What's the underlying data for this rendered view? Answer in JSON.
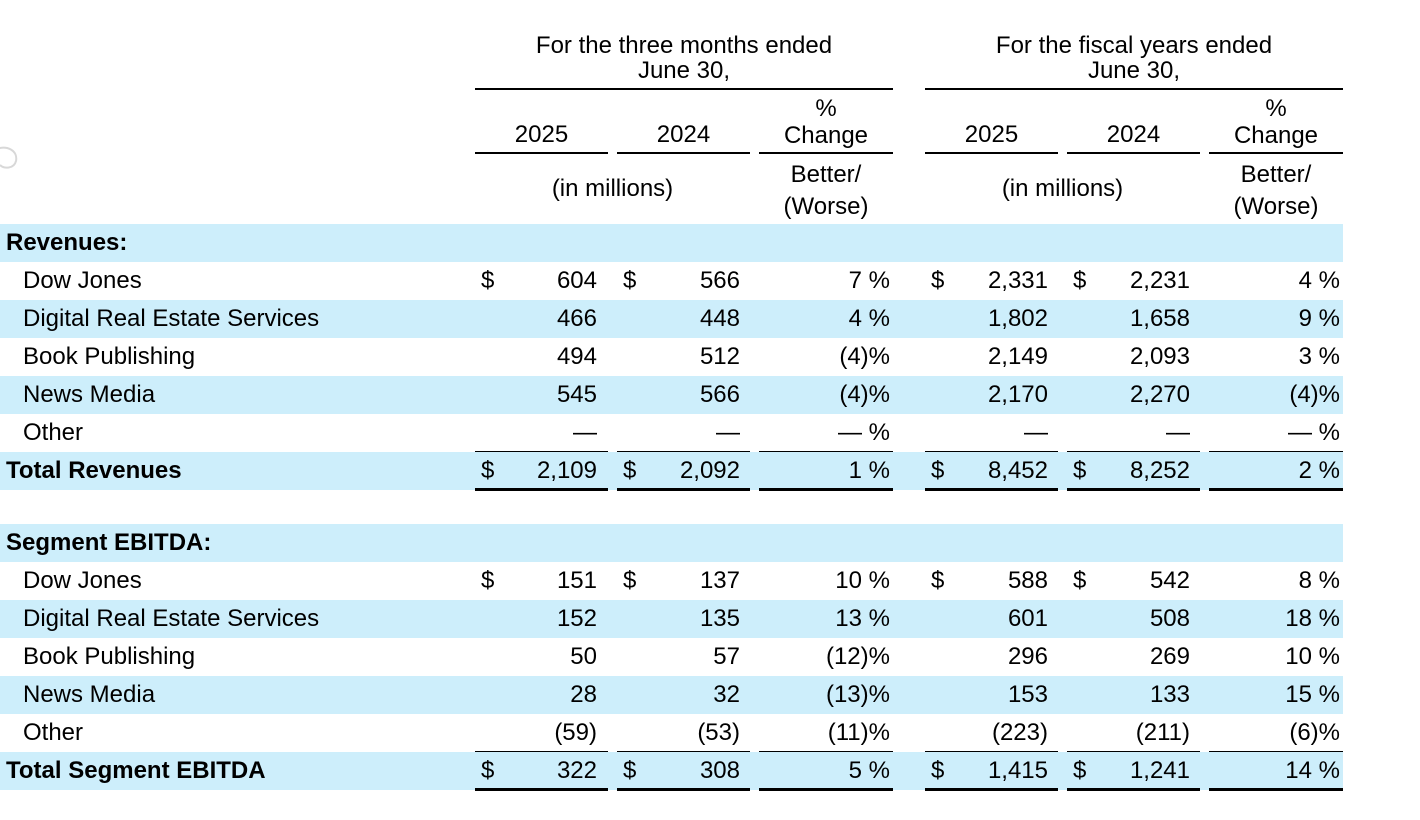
{
  "header": {
    "period_three_months": "For the three months ended June 30,",
    "period_three_months_line1": "For the three months ended",
    "period_three_months_line2": "June 30,",
    "period_fiscal_line1": "For the fiscal years ended",
    "period_fiscal_line2": "June 30,",
    "year_2025": "2025",
    "year_2024": "2024",
    "pct_symbol": "%",
    "change": "Change",
    "units": "(in millions)",
    "better": "Better/",
    "worse": "(Worse)"
  },
  "currency_symbol": "$",
  "sections": [
    {
      "title": "Revenues:",
      "rows": [
        {
          "label": "Dow Jones",
          "q25": "604",
          "q24": "566",
          "qchg": "7 %",
          "f25": "2,331",
          "f24": "2,231",
          "fchg": "4 %"
        },
        {
          "label": "Digital Real Estate Services",
          "q25": "466",
          "q24": "448",
          "qchg": "4 %",
          "f25": "1,802",
          "f24": "1,658",
          "fchg": "9 %"
        },
        {
          "label": "Book Publishing",
          "q25": "494",
          "q24": "512",
          "qchg": "(4)%",
          "f25": "2,149",
          "f24": "2,093",
          "fchg": "3 %"
        },
        {
          "label": "News Media",
          "q25": "545",
          "q24": "566",
          "qchg": "(4)%",
          "f25": "2,170",
          "f24": "2,270",
          "fchg": "(4)%"
        },
        {
          "label": "Other",
          "q25": "—",
          "q24": "—",
          "qchg": "— %",
          "f25": "—",
          "f24": "—",
          "fchg": "— %"
        }
      ],
      "total": {
        "label": "Total Revenues",
        "q25": "2,109",
        "q24": "2,092",
        "qchg": "1 %",
        "f25": "8,452",
        "f24": "8,252",
        "fchg": "2 %"
      }
    },
    {
      "title": "Segment EBITDA:",
      "rows": [
        {
          "label": "Dow Jones",
          "q25": "151",
          "q24": "137",
          "qchg": "10 %",
          "f25": "588",
          "f24": "542",
          "fchg": "8 %"
        },
        {
          "label": "Digital Real Estate Services",
          "q25": "152",
          "q24": "135",
          "qchg": "13 %",
          "f25": "601",
          "f24": "508",
          "fchg": "18 %"
        },
        {
          "label": "Book Publishing",
          "q25": "50",
          "q24": "57",
          "qchg": "(12)%",
          "f25": "296",
          "f24": "269",
          "fchg": "10 %"
        },
        {
          "label": "News Media",
          "q25": "28",
          "q24": "32",
          "qchg": "(13)%",
          "f25": "153",
          "f24": "133",
          "fchg": "15 %"
        },
        {
          "label": "Other",
          "q25": "(59)",
          "q24": "(53)",
          "qchg": "(11)%",
          "f25": "(223)",
          "f24": "(211)",
          "fchg": "(6)%"
        }
      ],
      "total": {
        "label": "Total Segment EBITDA",
        "q25": "322",
        "q24": "308",
        "qchg": "5 %",
        "f25": "1,415",
        "f24": "1,241",
        "fchg": "14 %"
      }
    }
  ]
}
